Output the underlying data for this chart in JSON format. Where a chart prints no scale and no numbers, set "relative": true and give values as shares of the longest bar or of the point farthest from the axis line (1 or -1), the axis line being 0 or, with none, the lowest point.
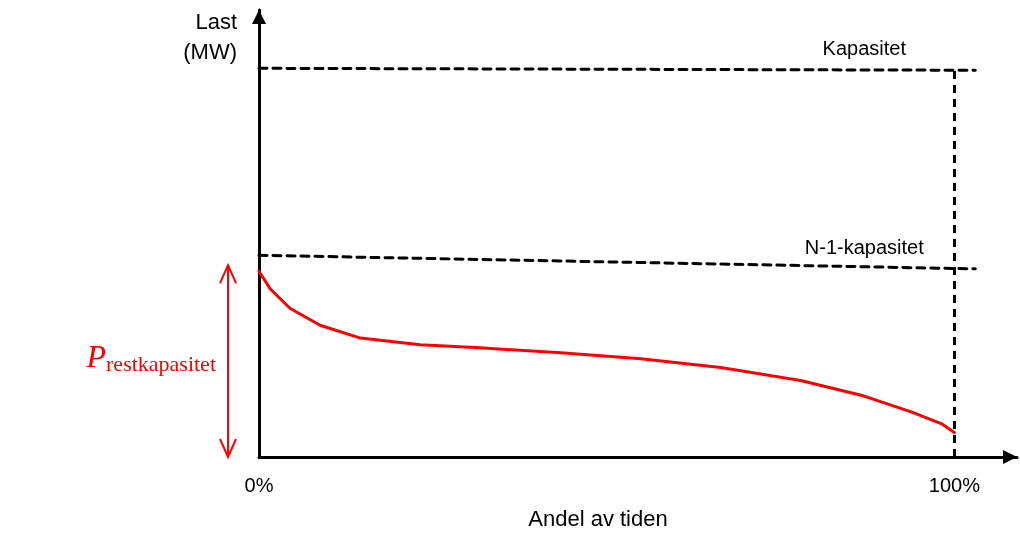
{
  "chart_data": {
    "type": "line",
    "relative": true,
    "xlabel": "Andel av tiden",
    "ylabel": "Last\n(MW)",
    "xlim": [
      0,
      109
    ],
    "xticks": [
      {
        "value": 0,
        "label": "0%"
      },
      {
        "value": 100,
        "label": "100%"
      }
    ],
    "grid": false,
    "legend": false,
    "marker": "none",
    "series": [
      {
        "name": "Kapasitet",
        "color": "#000000",
        "line_style": "dashed",
        "x": [
          0,
          103
        ],
        "values": [
          1,
          0.995
        ]
      },
      {
        "name": "N-1-kapasitet",
        "color": "#000000",
        "line_style": "dashed",
        "x": [
          0,
          103
        ],
        "values": [
          0.519,
          0.484
        ]
      },
      {
        "color": "#ff0000",
        "line_style": "solid",
        "x": [
          0,
          1.6,
          4.5,
          8.8,
          14.6,
          23.2,
          31.8,
          43.4,
          54.9,
          66.4,
          77.9,
          86.6,
          93.8,
          98.1,
          100
        ],
        "values": [
          0.478,
          0.433,
          0.382,
          0.339,
          0.306,
          0.289,
          0.281,
          0.268,
          0.253,
          0.23,
          0.197,
          0.159,
          0.116,
          0.086,
          0.063
        ]
      }
    ],
    "ref_lines": [
      {
        "axis": "x",
        "value": 100,
        "color": "#000000",
        "line_style": "dashed"
      }
    ],
    "annotations": [
      "P$_{restkapasitet}$"
    ]
  }
}
